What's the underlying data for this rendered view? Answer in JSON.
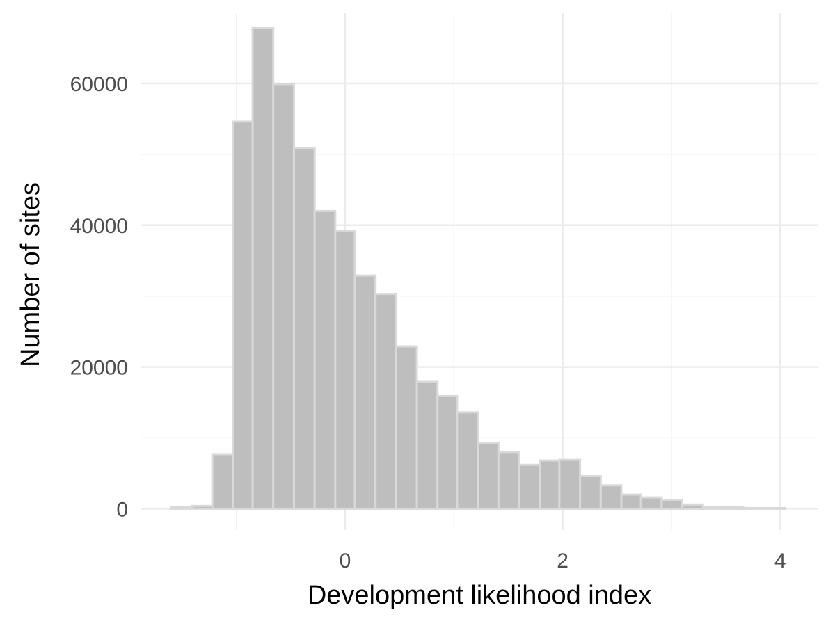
{
  "chart_data": {
    "type": "bar",
    "xlabel": "Development likelihood index",
    "ylabel": "Number of sites",
    "xlim": [
      -1.88,
      4.35
    ],
    "ylim": [
      -3000,
      70000
    ],
    "grid": true,
    "x_ticks": [
      0,
      2,
      4
    ],
    "x_minor_ticks": [
      -1,
      1,
      3
    ],
    "y_ticks": [
      0,
      20000,
      40000,
      60000
    ],
    "y_minor_ticks": [
      10000,
      30000,
      50000
    ],
    "bin_width": 0.188,
    "bins": [
      {
        "x0": -1.6,
        "x1": -1.41,
        "count": 200
      },
      {
        "x0": -1.41,
        "x1": -1.22,
        "count": 400
      },
      {
        "x0": -1.22,
        "x1": -1.03,
        "count": 7700
      },
      {
        "x0": -1.03,
        "x1": -0.85,
        "count": 54600
      },
      {
        "x0": -0.85,
        "x1": -0.66,
        "count": 67800
      },
      {
        "x0": -0.66,
        "x1": -0.47,
        "count": 59900
      },
      {
        "x0": -0.47,
        "x1": -0.28,
        "count": 50900
      },
      {
        "x0": -0.28,
        "x1": -0.09,
        "count": 42000
      },
      {
        "x0": -0.09,
        "x1": 0.09,
        "count": 39200
      },
      {
        "x0": 0.09,
        "x1": 0.28,
        "count": 32900
      },
      {
        "x0": 0.28,
        "x1": 0.47,
        "count": 30300
      },
      {
        "x0": 0.47,
        "x1": 0.66,
        "count": 22900
      },
      {
        "x0": 0.66,
        "x1": 0.85,
        "count": 17900
      },
      {
        "x0": 0.85,
        "x1": 1.03,
        "count": 15900
      },
      {
        "x0": 1.03,
        "x1": 1.22,
        "count": 13600
      },
      {
        "x0": 1.22,
        "x1": 1.41,
        "count": 9300
      },
      {
        "x0": 1.41,
        "x1": 1.6,
        "count": 8000
      },
      {
        "x0": 1.6,
        "x1": 1.79,
        "count": 6200
      },
      {
        "x0": 1.79,
        "x1": 1.97,
        "count": 6800
      },
      {
        "x0": 1.97,
        "x1": 2.16,
        "count": 6900
      },
      {
        "x0": 2.16,
        "x1": 2.35,
        "count": 4600
      },
      {
        "x0": 2.35,
        "x1": 2.54,
        "count": 3300
      },
      {
        "x0": 2.54,
        "x1": 2.72,
        "count": 2000
      },
      {
        "x0": 2.72,
        "x1": 2.91,
        "count": 1600
      },
      {
        "x0": 2.91,
        "x1": 3.1,
        "count": 1200
      },
      {
        "x0": 3.1,
        "x1": 3.29,
        "count": 600
      },
      {
        "x0": 3.29,
        "x1": 3.48,
        "count": 300
      },
      {
        "x0": 3.48,
        "x1": 3.66,
        "count": 200
      },
      {
        "x0": 3.66,
        "x1": 3.85,
        "count": 100
      },
      {
        "x0": 3.85,
        "x1": 4.04,
        "count": 100
      }
    ],
    "colors": {
      "bar_fill": "#bebebe",
      "bar_stroke": "#d9d9d9",
      "grid_major": "#ebebeb",
      "grid_minor": "#f2f2f2",
      "tick_text": "#4d4d4d",
      "title_text": "#000000"
    }
  }
}
